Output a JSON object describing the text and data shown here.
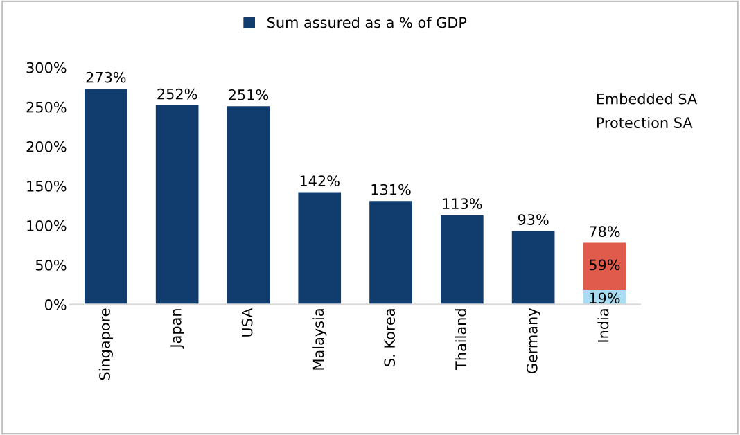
{
  "chart_data": {
    "type": "bar",
    "stacked": true,
    "categories": [
      "Singapore",
      "Japan",
      "USA",
      "Malaysia",
      "S. Korea",
      "Thailand",
      "Germany",
      "India"
    ],
    "series": [
      {
        "name": "Sum assured as a % of GDP",
        "color": "#103d6d",
        "values": [
          273,
          252,
          251,
          142,
          131,
          113,
          93,
          null
        ],
        "value_labels": [
          "273%",
          "252%",
          "251%",
          "142%",
          "131%",
          "113%",
          "93%",
          null
        ]
      },
      {
        "color": "#a9dcf0",
        "values": [
          null,
          null,
          null,
          null,
          null,
          null,
          null,
          19
        ],
        "value_labels": [
          null,
          null,
          null,
          null,
          null,
          null,
          null,
          "19%"
        ]
      },
      {
        "color": "#e05b4b",
        "values": [
          null,
          null,
          null,
          null,
          null,
          null,
          null,
          59
        ],
        "value_labels": [
          null,
          null,
          null,
          null,
          null,
          null,
          null,
          "59%"
        ]
      }
    ],
    "totals": [
      null,
      null,
      null,
      null,
      null,
      null,
      null,
      "78%"
    ],
    "ylim": [
      0,
      300
    ],
    "yticks": [
      {
        "value": 0,
        "label": "0%"
      },
      {
        "value": 50,
        "label": "50%"
      },
      {
        "value": 100,
        "label": "100%"
      },
      {
        "value": 150,
        "label": "150%"
      },
      {
        "value": 200,
        "label": "200%"
      },
      {
        "value": 250,
        "label": "250%"
      },
      {
        "value": 300,
        "label": "300%"
      }
    ],
    "annotations": [
      "Embedded SA",
      "Protection SA"
    ],
    "legend": "top",
    "grid": false
  }
}
